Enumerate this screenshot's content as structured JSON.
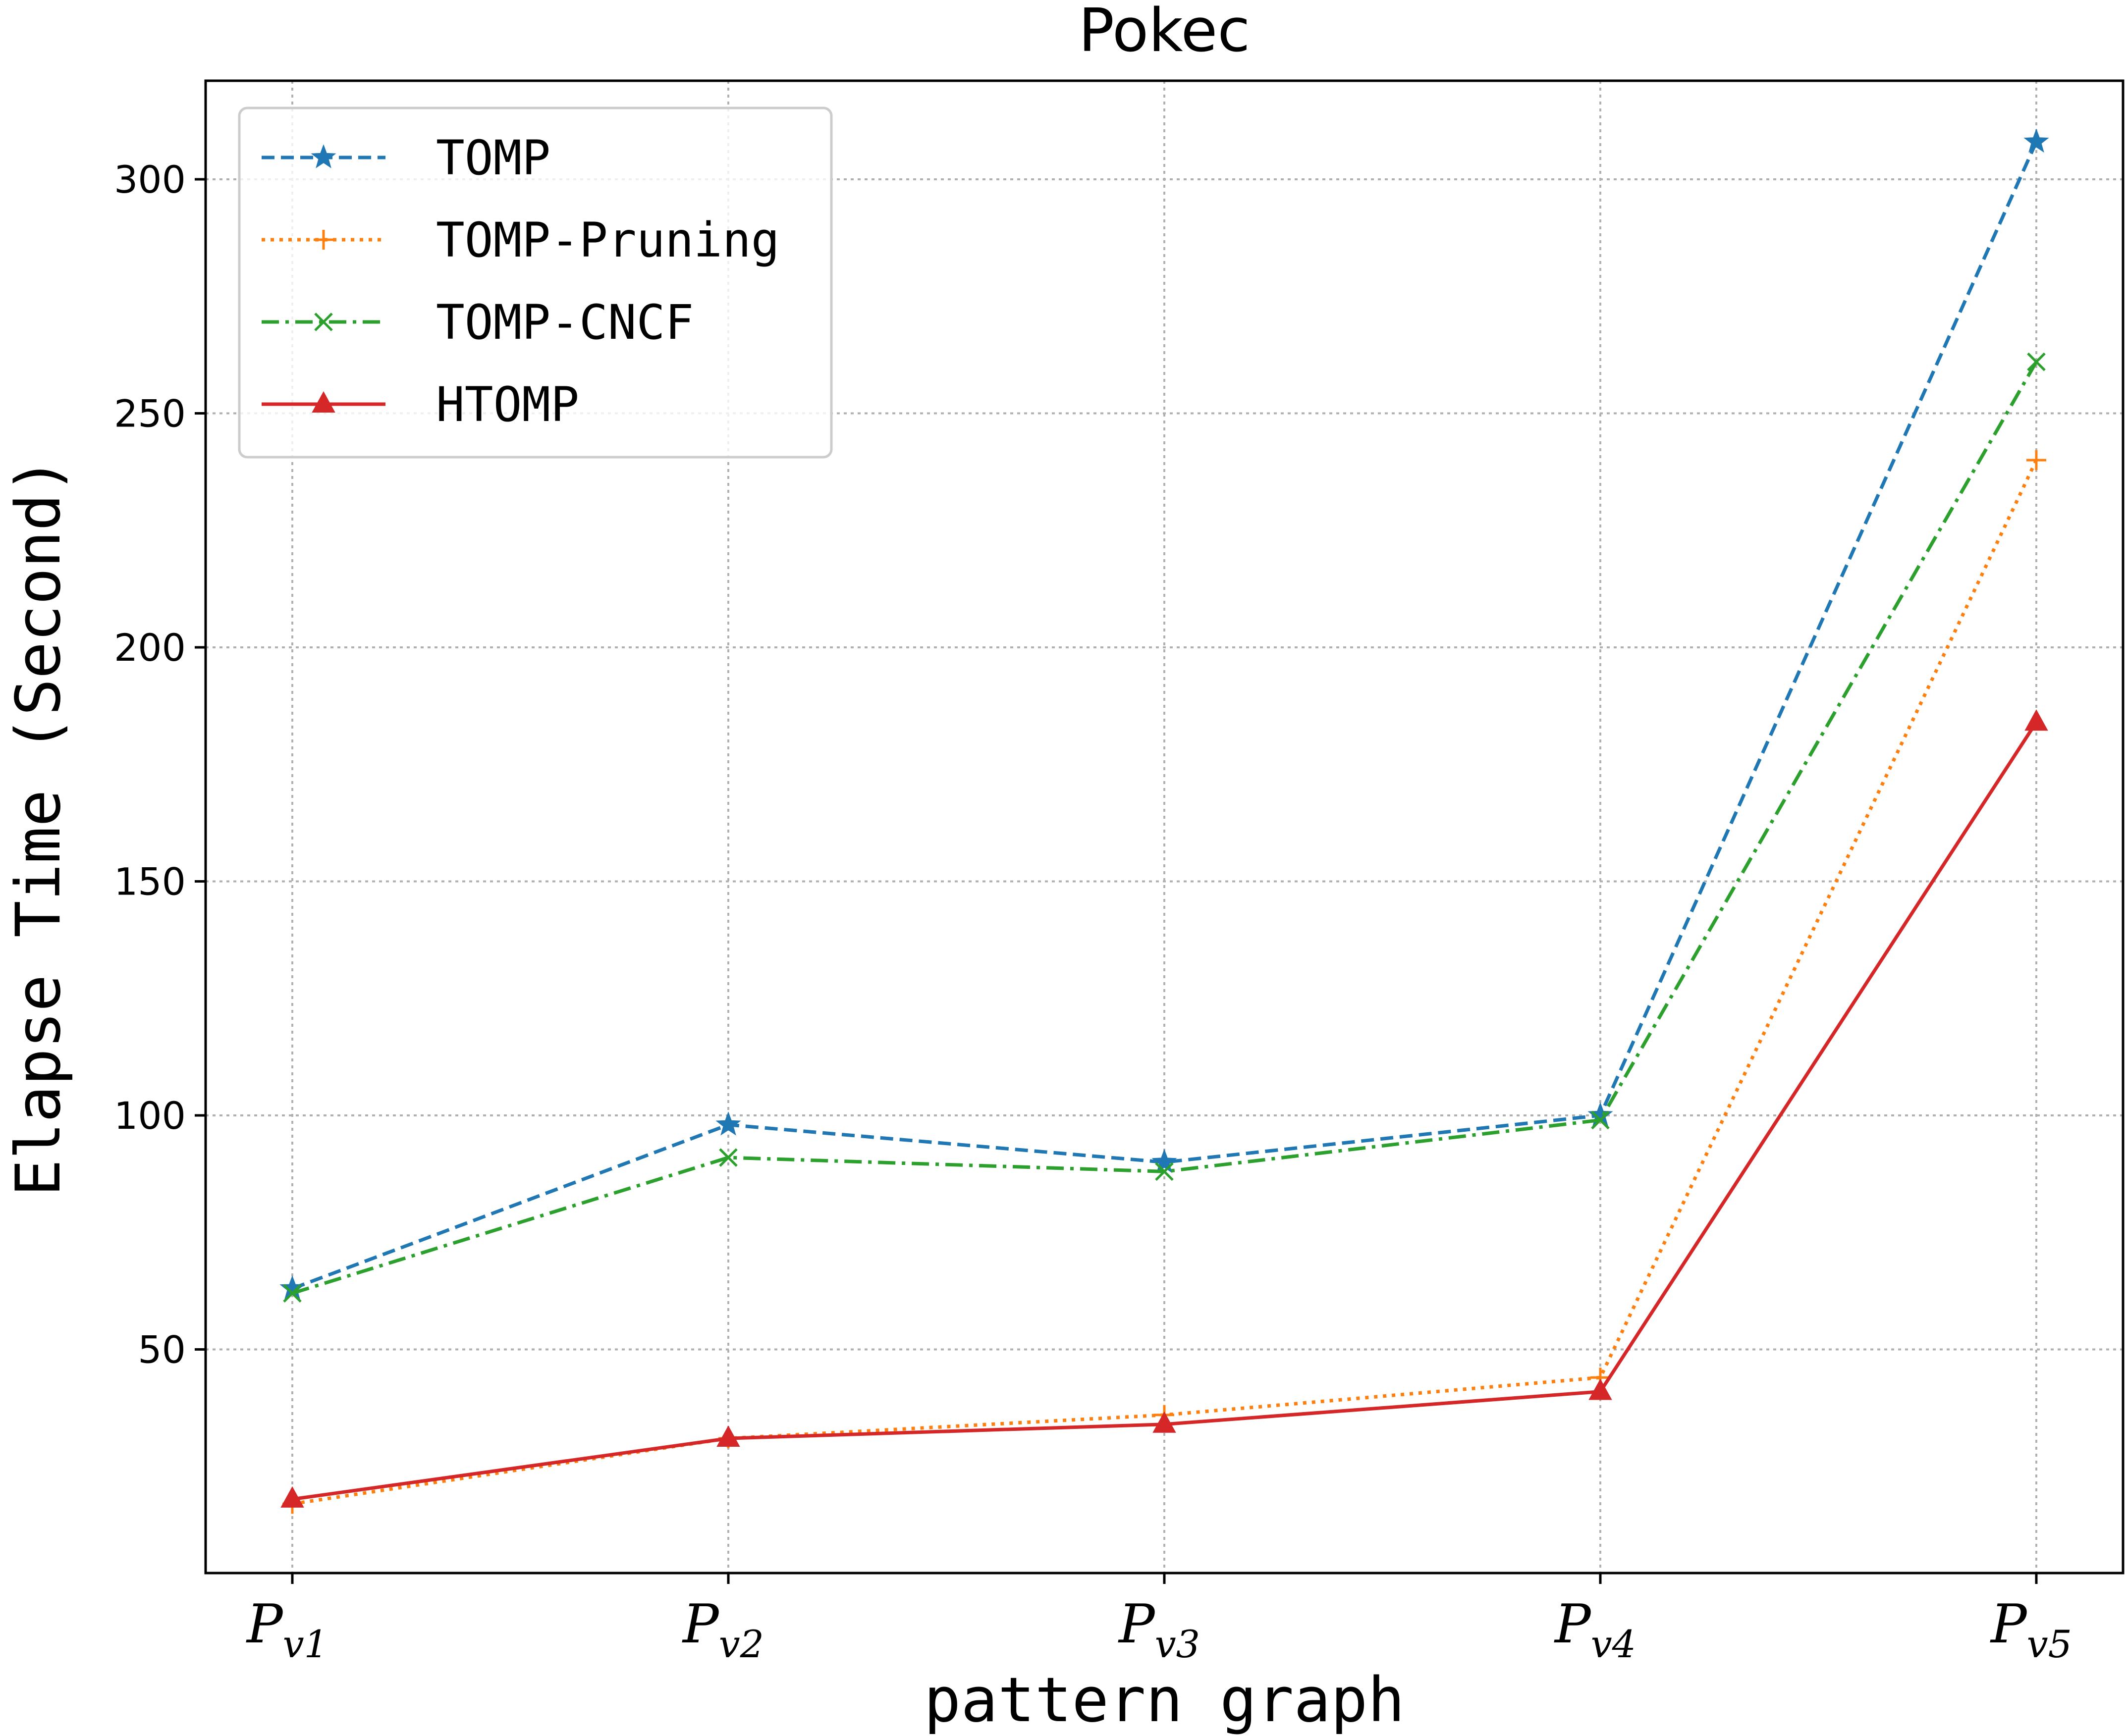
{
  "chart_data": {
    "type": "line",
    "title": "Pokec",
    "xlabel": "pattern graph",
    "ylabel": "Elapse Time (Second)",
    "categories": [
      {
        "main": "P",
        "sub": "v1"
      },
      {
        "main": "P",
        "sub": "v2"
      },
      {
        "main": "P",
        "sub": "v3"
      },
      {
        "main": "P",
        "sub": "v4"
      },
      {
        "main": "P",
        "sub": "v5"
      }
    ],
    "ylim": [
      0,
      321
    ],
    "yticks": [
      50,
      100,
      150,
      200,
      250,
      300
    ],
    "grid": true,
    "legend_position": "top-left",
    "series": [
      {
        "name": "TOMP",
        "values": [
          63,
          98,
          90,
          100,
          308
        ],
        "color": "#1f77b4",
        "linestyle": "dashed",
        "marker": "star"
      },
      {
        "name": "TOMP-Pruning",
        "values": [
          17,
          31,
          36,
          44,
          240
        ],
        "color": "#ff7f0e",
        "linestyle": "dotted",
        "marker": "plus"
      },
      {
        "name": "TOMP-CNCF",
        "values": [
          62,
          91,
          88,
          99,
          261
        ],
        "color": "#2ca02c",
        "linestyle": "dashdot",
        "marker": "x"
      },
      {
        "name": "HTOMP",
        "values": [
          18,
          31,
          34,
          41,
          184
        ],
        "color": "#d62728",
        "linestyle": "solid",
        "marker": "triangle"
      }
    ]
  }
}
